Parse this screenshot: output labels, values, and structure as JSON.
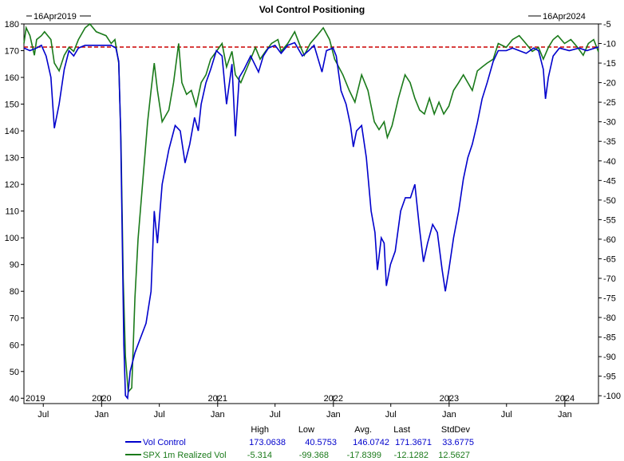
{
  "chart_data": {
    "type": "line",
    "title": "Vol Control Positioning",
    "start_label": "16Apr2019",
    "end_label": "16Apr2024",
    "x_range": [
      "2019-05-01",
      "2024-04-16"
    ],
    "y_left": {
      "lim": [
        38,
        180
      ],
      "ticks": [
        180,
        170,
        160,
        150,
        140,
        130,
        120,
        110,
        100,
        90,
        80,
        70,
        60,
        50,
        40
      ]
    },
    "y_right": {
      "lim": [
        -102,
        -5
      ],
      "ticks": [
        -5,
        -10,
        -15,
        -20,
        -25,
        -30,
        -35,
        -40,
        -45,
        -50,
        -55,
        -60,
        -65,
        -70,
        -75,
        -80,
        -85,
        -90,
        -95,
        -100
      ]
    },
    "year_labels": [
      {
        "text": "2019",
        "date": "2019-05-01"
      },
      {
        "text": "2020",
        "date": "2020-01-01"
      },
      {
        "text": "2021",
        "date": "2021-01-01"
      },
      {
        "text": "2022",
        "date": "2022-01-01"
      },
      {
        "text": "2023",
        "date": "2023-01-01"
      },
      {
        "text": "2024",
        "date": "2024-01-01"
      }
    ],
    "month_ticks": [
      {
        "text": "Jul",
        "date": "2019-07-01"
      },
      {
        "text": "Jan",
        "date": "2020-01-01"
      },
      {
        "text": "Jul",
        "date": "2020-07-01"
      },
      {
        "text": "Jan",
        "date": "2021-01-01"
      },
      {
        "text": "Jul",
        "date": "2021-07-01"
      },
      {
        "text": "Jan",
        "date": "2022-01-01"
      },
      {
        "text": "Jul",
        "date": "2022-07-01"
      },
      {
        "text": "Jan",
        "date": "2023-01-01"
      },
      {
        "text": "Jul",
        "date": "2023-07-01"
      },
      {
        "text": "Jan",
        "date": "2024-01-01"
      }
    ],
    "reference_line": {
      "value": 171.3671,
      "axis": "left",
      "color": "#cc0000",
      "style": "dashed"
    },
    "series": [
      {
        "name": "Vol Control",
        "axis": "left",
        "color": "#0000cc",
        "points": [
          [
            "2019-05-01",
            171
          ],
          [
            "2019-05-20",
            170
          ],
          [
            "2019-06-10",
            171
          ],
          [
            "2019-06-25",
            172
          ],
          [
            "2019-07-10",
            168
          ],
          [
            "2019-07-25",
            160
          ],
          [
            "2019-08-05",
            141
          ],
          [
            "2019-08-20",
            150
          ],
          [
            "2019-09-05",
            163
          ],
          [
            "2019-09-20",
            170
          ],
          [
            "2019-10-05",
            168
          ],
          [
            "2019-10-20",
            171
          ],
          [
            "2019-11-10",
            172
          ],
          [
            "2019-12-10",
            172
          ],
          [
            "2020-01-10",
            172
          ],
          [
            "2020-01-31",
            172
          ],
          [
            "2020-02-15",
            171
          ],
          [
            "2020-02-24",
            166
          ],
          [
            "2020-03-01",
            140
          ],
          [
            "2020-03-06",
            100
          ],
          [
            "2020-03-11",
            60
          ],
          [
            "2020-03-16",
            41
          ],
          [
            "2020-03-23",
            40
          ],
          [
            "2020-03-31",
            50
          ],
          [
            "2020-04-15",
            57
          ],
          [
            "2020-05-01",
            62
          ],
          [
            "2020-05-20",
            68
          ],
          [
            "2020-06-05",
            80
          ],
          [
            "2020-06-15",
            110
          ],
          [
            "2020-06-25",
            98
          ],
          [
            "2020-07-10",
            120
          ],
          [
            "2020-07-31",
            133
          ],
          [
            "2020-08-20",
            142
          ],
          [
            "2020-09-05",
            140
          ],
          [
            "2020-09-20",
            128
          ],
          [
            "2020-10-05",
            135
          ],
          [
            "2020-10-20",
            145
          ],
          [
            "2020-11-01",
            140
          ],
          [
            "2020-11-10",
            150
          ],
          [
            "2020-11-25",
            158
          ],
          [
            "2020-12-10",
            163
          ],
          [
            "2020-12-28",
            170
          ],
          [
            "2021-01-15",
            168
          ],
          [
            "2021-01-29",
            150
          ],
          [
            "2021-02-15",
            165
          ],
          [
            "2021-02-26",
            138
          ],
          [
            "2021-03-10",
            160
          ],
          [
            "2021-03-25",
            163
          ],
          [
            "2021-04-15",
            168
          ],
          [
            "2021-05-10",
            162
          ],
          [
            "2021-05-25",
            168
          ],
          [
            "2021-06-10",
            171
          ],
          [
            "2021-07-01",
            172
          ],
          [
            "2021-07-20",
            169
          ],
          [
            "2021-08-10",
            172
          ],
          [
            "2021-09-01",
            173
          ],
          [
            "2021-09-25",
            168
          ],
          [
            "2021-10-15",
            170
          ],
          [
            "2021-11-01",
            172
          ],
          [
            "2021-11-26",
            162
          ],
          [
            "2021-12-10",
            170
          ],
          [
            "2021-12-31",
            171
          ],
          [
            "2022-01-10",
            168
          ],
          [
            "2022-01-25",
            155
          ],
          [
            "2022-02-10",
            150
          ],
          [
            "2022-02-24",
            142
          ],
          [
            "2022-03-05",
            134
          ],
          [
            "2022-03-15",
            140
          ],
          [
            "2022-03-31",
            142
          ],
          [
            "2022-04-15",
            130
          ],
          [
            "2022-04-30",
            110
          ],
          [
            "2022-05-12",
            102
          ],
          [
            "2022-05-20",
            88
          ],
          [
            "2022-06-01",
            100
          ],
          [
            "2022-06-10",
            98
          ],
          [
            "2022-06-17",
            82
          ],
          [
            "2022-06-30",
            90
          ],
          [
            "2022-07-15",
            95
          ],
          [
            "2022-08-01",
            110
          ],
          [
            "2022-08-16",
            115
          ],
          [
            "2022-09-01",
            115
          ],
          [
            "2022-09-15",
            120
          ],
          [
            "2022-09-30",
            103
          ],
          [
            "2022-10-12",
            91
          ],
          [
            "2022-10-25",
            98
          ],
          [
            "2022-11-10",
            105
          ],
          [
            "2022-11-25",
            102
          ],
          [
            "2022-12-10",
            88
          ],
          [
            "2022-12-20",
            80
          ],
          [
            "2022-12-31",
            88
          ],
          [
            "2023-01-15",
            100
          ],
          [
            "2023-01-31",
            110
          ],
          [
            "2023-02-15",
            122
          ],
          [
            "2023-03-01",
            130
          ],
          [
            "2023-03-15",
            135
          ],
          [
            "2023-03-31",
            143
          ],
          [
            "2023-04-15",
            152
          ],
          [
            "2023-05-01",
            158
          ],
          [
            "2023-05-20",
            166
          ],
          [
            "2023-06-05",
            170
          ],
          [
            "2023-06-30",
            170
          ],
          [
            "2023-07-20",
            171
          ],
          [
            "2023-08-10",
            170
          ],
          [
            "2023-09-01",
            169
          ],
          [
            "2023-09-25",
            171
          ],
          [
            "2023-10-10",
            170
          ],
          [
            "2023-10-25",
            163
          ],
          [
            "2023-11-01",
            152
          ],
          [
            "2023-11-10",
            160
          ],
          [
            "2023-11-25",
            168
          ],
          [
            "2023-12-15",
            171
          ],
          [
            "2024-01-15",
            170
          ],
          [
            "2024-02-15",
            171
          ],
          [
            "2024-03-10",
            170
          ],
          [
            "2024-04-16",
            171.37
          ]
        ]
      },
      {
        "name": "SPX 1m Realized Vol",
        "axis": "right",
        "color": "#1a7a1a",
        "points": [
          [
            "2019-05-01",
            -10
          ],
          [
            "2019-05-08",
            -6
          ],
          [
            "2019-05-20",
            -8
          ],
          [
            "2019-06-03",
            -13
          ],
          [
            "2019-06-10",
            -9
          ],
          [
            "2019-06-25",
            -8
          ],
          [
            "2019-07-05",
            -7
          ],
          [
            "2019-07-25",
            -9
          ],
          [
            "2019-08-05",
            -15
          ],
          [
            "2019-08-20",
            -17
          ],
          [
            "2019-09-05",
            -13
          ],
          [
            "2019-09-20",
            -11
          ],
          [
            "2019-10-05",
            -12
          ],
          [
            "2019-10-20",
            -9
          ],
          [
            "2019-11-10",
            -6
          ],
          [
            "2019-11-25",
            -5
          ],
          [
            "2019-12-15",
            -7
          ],
          [
            "2020-01-15",
            -8
          ],
          [
            "2020-01-31",
            -10
          ],
          [
            "2020-02-12",
            -9
          ],
          [
            "2020-02-24",
            -15
          ],
          [
            "2020-03-02",
            -35
          ],
          [
            "2020-03-09",
            -70
          ],
          [
            "2020-03-16",
            -90
          ],
          [
            "2020-03-25",
            -99
          ],
          [
            "2020-04-05",
            -98
          ],
          [
            "2020-04-15",
            -75
          ],
          [
            "2020-04-25",
            -60
          ],
          [
            "2020-05-10",
            -45
          ],
          [
            "2020-05-25",
            -30
          ],
          [
            "2020-06-05",
            -22
          ],
          [
            "2020-06-15",
            -15
          ],
          [
            "2020-06-25",
            -22
          ],
          [
            "2020-07-10",
            -30
          ],
          [
            "2020-07-31",
            -27
          ],
          [
            "2020-08-15",
            -20
          ],
          [
            "2020-08-31",
            -10
          ],
          [
            "2020-09-10",
            -20
          ],
          [
            "2020-09-25",
            -23
          ],
          [
            "2020-10-10",
            -22
          ],
          [
            "2020-10-25",
            -26
          ],
          [
            "2020-11-10",
            -20
          ],
          [
            "2020-11-25",
            -18
          ],
          [
            "2020-12-10",
            -14
          ],
          [
            "2020-12-28",
            -12
          ],
          [
            "2021-01-15",
            -10
          ],
          [
            "2021-01-29",
            -16
          ],
          [
            "2021-02-15",
            -12
          ],
          [
            "2021-02-26",
            -18
          ],
          [
            "2021-03-15",
            -20
          ],
          [
            "2021-04-10",
            -15
          ],
          [
            "2021-04-30",
            -11
          ],
          [
            "2021-05-15",
            -14
          ],
          [
            "2021-06-01",
            -12
          ],
          [
            "2021-06-20",
            -10
          ],
          [
            "2021-07-10",
            -9
          ],
          [
            "2021-07-20",
            -12
          ],
          [
            "2021-08-10",
            -10
          ],
          [
            "2021-09-01",
            -7
          ],
          [
            "2021-09-20",
            -11
          ],
          [
            "2021-10-01",
            -13
          ],
          [
            "2021-10-20",
            -10
          ],
          [
            "2021-11-10",
            -8
          ],
          [
            "2021-11-30",
            -6
          ],
          [
            "2021-12-20",
            -9
          ],
          [
            "2022-01-05",
            -14
          ],
          [
            "2022-01-31",
            -18
          ],
          [
            "2022-02-20",
            -22
          ],
          [
            "2022-03-10",
            -25
          ],
          [
            "2022-03-31",
            -18
          ],
          [
            "2022-04-20",
            -22
          ],
          [
            "2022-05-10",
            -30
          ],
          [
            "2022-05-25",
            -32
          ],
          [
            "2022-06-10",
            -30
          ],
          [
            "2022-06-20",
            -34
          ],
          [
            "2022-07-05",
            -31
          ],
          [
            "2022-07-25",
            -24
          ],
          [
            "2022-08-15",
            -18
          ],
          [
            "2022-08-31",
            -20
          ],
          [
            "2022-09-15",
            -24
          ],
          [
            "2022-09-30",
            -27
          ],
          [
            "2022-10-15",
            -28
          ],
          [
            "2022-10-31",
            -24
          ],
          [
            "2022-11-15",
            -28
          ],
          [
            "2022-11-30",
            -25
          ],
          [
            "2022-12-15",
            -28
          ],
          [
            "2022-12-31",
            -26
          ],
          [
            "2023-01-15",
            -22
          ],
          [
            "2023-01-31",
            -20
          ],
          [
            "2023-02-15",
            -18
          ],
          [
            "2023-03-01",
            -20
          ],
          [
            "2023-03-15",
            -22
          ],
          [
            "2023-03-31",
            -17
          ],
          [
            "2023-04-15",
            -16
          ],
          [
            "2023-05-01",
            -15
          ],
          [
            "2023-05-20",
            -14
          ],
          [
            "2023-06-05",
            -10
          ],
          [
            "2023-06-30",
            -11
          ],
          [
            "2023-07-20",
            -9
          ],
          [
            "2023-08-10",
            -8
          ],
          [
            "2023-08-31",
            -10
          ],
          [
            "2023-09-20",
            -12
          ],
          [
            "2023-10-10",
            -11
          ],
          [
            "2023-10-25",
            -14
          ],
          [
            "2023-11-10",
            -11
          ],
          [
            "2023-11-25",
            -9
          ],
          [
            "2023-12-10",
            -8
          ],
          [
            "2023-12-31",
            -10
          ],
          [
            "2024-01-20",
            -9
          ],
          [
            "2024-02-10",
            -11
          ],
          [
            "2024-02-28",
            -13
          ],
          [
            "2024-03-15",
            -10
          ],
          [
            "2024-04-01",
            -9
          ],
          [
            "2024-04-16",
            -12.13
          ]
        ]
      }
    ],
    "stats": {
      "headers": [
        "High",
        "Low",
        "Avg.",
        "Last",
        "StdDev"
      ],
      "rows": [
        {
          "name": "Vol Control",
          "color": "#0000cc",
          "values": [
            "173.0638",
            "40.5753",
            "146.0742",
            "171.3671",
            "33.6775"
          ]
        },
        {
          "name": "SPX 1m Realized Vol",
          "color": "#1a7a1a",
          "values": [
            "-5.314",
            "-99.368",
            "-17.8399",
            "-12.1282",
            "12.5627"
          ]
        }
      ]
    }
  }
}
